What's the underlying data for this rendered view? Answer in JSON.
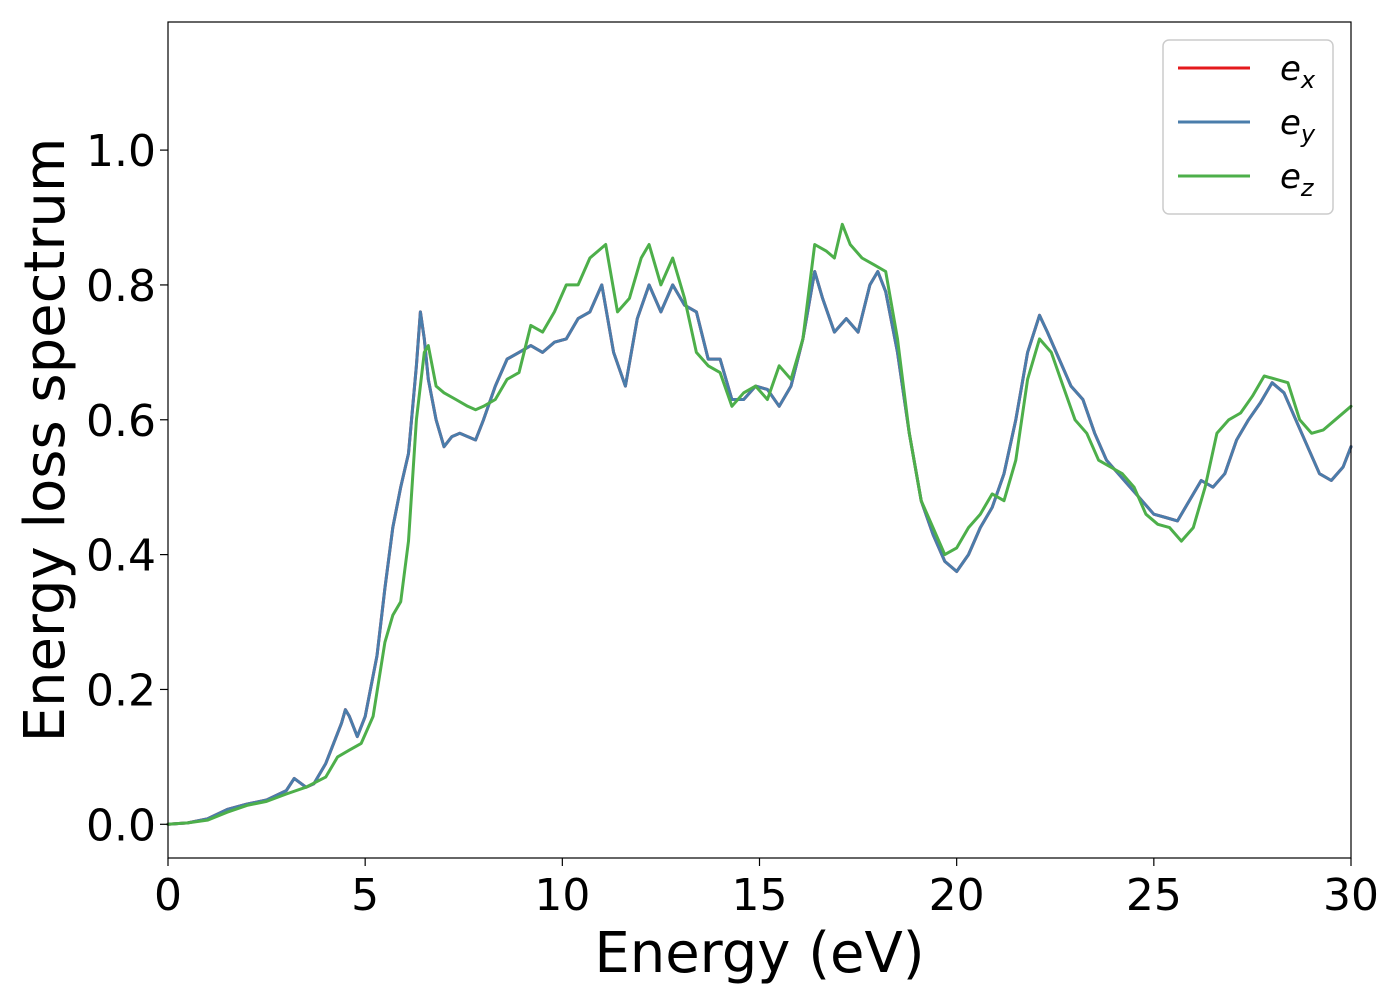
{
  "chart_data": {
    "type": "line",
    "title": "",
    "xlabel": "Energy (eV)",
    "ylabel": "Energy loss spectrum",
    "xlim": [
      0,
      30
    ],
    "ylim": [
      -0.05,
      1.19
    ],
    "xticks": [
      "0",
      "5",
      "10",
      "15",
      "20",
      "25",
      "30"
    ],
    "yticks": [
      "0.0",
      "0.2",
      "0.4",
      "0.6",
      "0.8",
      "1.0"
    ],
    "grid": false,
    "legend_position": "top-right",
    "series": [
      {
        "name": "e_x",
        "legend_base": "e",
        "legend_sub": "x",
        "color": "#e41a1c",
        "x": [
          0,
          0.5,
          1.0,
          1.5,
          2.0,
          2.5,
          3.0,
          3.2,
          3.5,
          3.7,
          4.0,
          4.2,
          4.4,
          4.5,
          4.6,
          4.8,
          5.0,
          5.3,
          5.5,
          5.7,
          5.9,
          6.1,
          6.3,
          6.4,
          6.5,
          6.6,
          6.8,
          7.0,
          7.2,
          7.4,
          7.6,
          7.8,
          8.0,
          8.3,
          8.6,
          8.9,
          9.2,
          9.5,
          9.8,
          10.1,
          10.4,
          10.7,
          11.0,
          11.3,
          11.6,
          11.9,
          12.2,
          12.5,
          12.8,
          13.1,
          13.4,
          13.7,
          14.0,
          14.3,
          14.6,
          14.9,
          15.2,
          15.5,
          15.8,
          16.1,
          16.4,
          16.6,
          16.9,
          17.2,
          17.5,
          17.8,
          18.0,
          18.2,
          18.5,
          18.8,
          19.1,
          19.4,
          19.7,
          20.0,
          20.3,
          20.6,
          20.9,
          21.2,
          21.5,
          21.8,
          22.1,
          22.3,
          22.6,
          22.9,
          23.2,
          23.5,
          23.8,
          24.1,
          24.4,
          24.7,
          25.0,
          25.3,
          25.6,
          25.9,
          26.2,
          26.5,
          26.8,
          27.1,
          27.4,
          27.7,
          28.0,
          28.3,
          28.6,
          28.9,
          29.2,
          29.5,
          29.8,
          30.0
        ],
        "y": [
          0.0,
          0.002,
          0.008,
          0.022,
          0.03,
          0.036,
          0.05,
          0.068,
          0.055,
          0.06,
          0.09,
          0.12,
          0.15,
          0.17,
          0.16,
          0.13,
          0.16,
          0.25,
          0.35,
          0.44,
          0.5,
          0.55,
          0.68,
          0.76,
          0.72,
          0.66,
          0.6,
          0.56,
          0.575,
          0.58,
          0.575,
          0.57,
          0.6,
          0.65,
          0.69,
          0.7,
          0.71,
          0.7,
          0.715,
          0.72,
          0.75,
          0.76,
          0.8,
          0.7,
          0.65,
          0.75,
          0.8,
          0.76,
          0.8,
          0.77,
          0.76,
          0.69,
          0.69,
          0.63,
          0.63,
          0.65,
          0.645,
          0.62,
          0.65,
          0.72,
          0.82,
          0.78,
          0.73,
          0.75,
          0.73,
          0.8,
          0.82,
          0.79,
          0.7,
          0.58,
          0.48,
          0.43,
          0.39,
          0.375,
          0.4,
          0.44,
          0.47,
          0.52,
          0.6,
          0.7,
          0.755,
          0.73,
          0.69,
          0.65,
          0.63,
          0.58,
          0.54,
          0.52,
          0.5,
          0.48,
          0.46,
          0.455,
          0.45,
          0.48,
          0.51,
          0.5,
          0.52,
          0.57,
          0.6,
          0.625,
          0.655,
          0.64,
          0.6,
          0.56,
          0.52,
          0.51,
          0.53,
          0.56
        ]
      },
      {
        "name": "e_y",
        "legend_base": "e",
        "legend_sub": "y",
        "color": "#4a7dab",
        "x": [
          0,
          0.5,
          1.0,
          1.5,
          2.0,
          2.5,
          3.0,
          3.2,
          3.5,
          3.7,
          4.0,
          4.2,
          4.4,
          4.5,
          4.6,
          4.8,
          5.0,
          5.3,
          5.5,
          5.7,
          5.9,
          6.1,
          6.3,
          6.4,
          6.5,
          6.6,
          6.8,
          7.0,
          7.2,
          7.4,
          7.6,
          7.8,
          8.0,
          8.3,
          8.6,
          8.9,
          9.2,
          9.5,
          9.8,
          10.1,
          10.4,
          10.7,
          11.0,
          11.3,
          11.6,
          11.9,
          12.2,
          12.5,
          12.8,
          13.1,
          13.4,
          13.7,
          14.0,
          14.3,
          14.6,
          14.9,
          15.2,
          15.5,
          15.8,
          16.1,
          16.4,
          16.6,
          16.9,
          17.2,
          17.5,
          17.8,
          18.0,
          18.2,
          18.5,
          18.8,
          19.1,
          19.4,
          19.7,
          20.0,
          20.3,
          20.6,
          20.9,
          21.2,
          21.5,
          21.8,
          22.1,
          22.3,
          22.6,
          22.9,
          23.2,
          23.5,
          23.8,
          24.1,
          24.4,
          24.7,
          25.0,
          25.3,
          25.6,
          25.9,
          26.2,
          26.5,
          26.8,
          27.1,
          27.4,
          27.7,
          28.0,
          28.3,
          28.6,
          28.9,
          29.2,
          29.5,
          29.8,
          30.0
        ],
        "y": [
          0.0,
          0.002,
          0.008,
          0.022,
          0.03,
          0.036,
          0.05,
          0.068,
          0.055,
          0.06,
          0.09,
          0.12,
          0.15,
          0.17,
          0.16,
          0.13,
          0.16,
          0.25,
          0.35,
          0.44,
          0.5,
          0.55,
          0.68,
          0.76,
          0.72,
          0.66,
          0.6,
          0.56,
          0.575,
          0.58,
          0.575,
          0.57,
          0.6,
          0.65,
          0.69,
          0.7,
          0.71,
          0.7,
          0.715,
          0.72,
          0.75,
          0.76,
          0.8,
          0.7,
          0.65,
          0.75,
          0.8,
          0.76,
          0.8,
          0.77,
          0.76,
          0.69,
          0.69,
          0.63,
          0.63,
          0.65,
          0.645,
          0.62,
          0.65,
          0.72,
          0.82,
          0.78,
          0.73,
          0.75,
          0.73,
          0.8,
          0.82,
          0.79,
          0.7,
          0.58,
          0.48,
          0.43,
          0.39,
          0.375,
          0.4,
          0.44,
          0.47,
          0.52,
          0.6,
          0.7,
          0.755,
          0.73,
          0.69,
          0.65,
          0.63,
          0.58,
          0.54,
          0.52,
          0.5,
          0.48,
          0.46,
          0.455,
          0.45,
          0.48,
          0.51,
          0.5,
          0.52,
          0.57,
          0.6,
          0.625,
          0.655,
          0.64,
          0.6,
          0.56,
          0.52,
          0.51,
          0.53,
          0.56
        ]
      },
      {
        "name": "e_z",
        "legend_base": "e",
        "legend_sub": "z",
        "color": "#4daf4a",
        "x": [
          0,
          0.5,
          1.0,
          1.5,
          2.0,
          2.5,
          3.0,
          3.5,
          4.0,
          4.3,
          4.6,
          4.9,
          5.2,
          5.5,
          5.7,
          5.9,
          6.1,
          6.3,
          6.5,
          6.6,
          6.8,
          7.0,
          7.3,
          7.6,
          7.8,
          8.0,
          8.3,
          8.6,
          8.9,
          9.2,
          9.5,
          9.8,
          10.1,
          10.4,
          10.7,
          10.9,
          11.1,
          11.4,
          11.7,
          12.0,
          12.2,
          12.5,
          12.8,
          13.1,
          13.4,
          13.7,
          14.0,
          14.3,
          14.6,
          14.9,
          15.2,
          15.5,
          15.8,
          16.1,
          16.4,
          16.7,
          16.9,
          17.1,
          17.3,
          17.6,
          17.9,
          18.2,
          18.5,
          18.8,
          19.1,
          19.4,
          19.7,
          20.0,
          20.3,
          20.6,
          20.9,
          21.2,
          21.5,
          21.8,
          22.1,
          22.4,
          22.7,
          23.0,
          23.3,
          23.6,
          23.9,
          24.2,
          24.5,
          24.8,
          25.1,
          25.4,
          25.7,
          26.0,
          26.3,
          26.6,
          26.9,
          27.2,
          27.5,
          27.8,
          28.1,
          28.4,
          28.7,
          29.0,
          29.3,
          29.6,
          30.0
        ],
        "y": [
          0.0,
          0.002,
          0.006,
          0.018,
          0.028,
          0.034,
          0.045,
          0.055,
          0.07,
          0.1,
          0.11,
          0.12,
          0.16,
          0.27,
          0.31,
          0.33,
          0.42,
          0.6,
          0.7,
          0.71,
          0.65,
          0.64,
          0.63,
          0.62,
          0.615,
          0.62,
          0.63,
          0.66,
          0.67,
          0.74,
          0.73,
          0.76,
          0.8,
          0.8,
          0.84,
          0.85,
          0.86,
          0.76,
          0.78,
          0.84,
          0.86,
          0.8,
          0.84,
          0.78,
          0.7,
          0.68,
          0.67,
          0.62,
          0.64,
          0.65,
          0.63,
          0.68,
          0.66,
          0.72,
          0.86,
          0.85,
          0.84,
          0.89,
          0.86,
          0.84,
          0.83,
          0.82,
          0.72,
          0.58,
          0.48,
          0.44,
          0.4,
          0.41,
          0.44,
          0.46,
          0.49,
          0.48,
          0.54,
          0.66,
          0.72,
          0.7,
          0.65,
          0.6,
          0.58,
          0.54,
          0.53,
          0.52,
          0.5,
          0.46,
          0.445,
          0.44,
          0.42,
          0.44,
          0.5,
          0.58,
          0.6,
          0.61,
          0.635,
          0.665,
          0.66,
          0.655,
          0.6,
          0.58,
          0.585,
          0.6,
          0.62
        ]
      }
    ]
  }
}
